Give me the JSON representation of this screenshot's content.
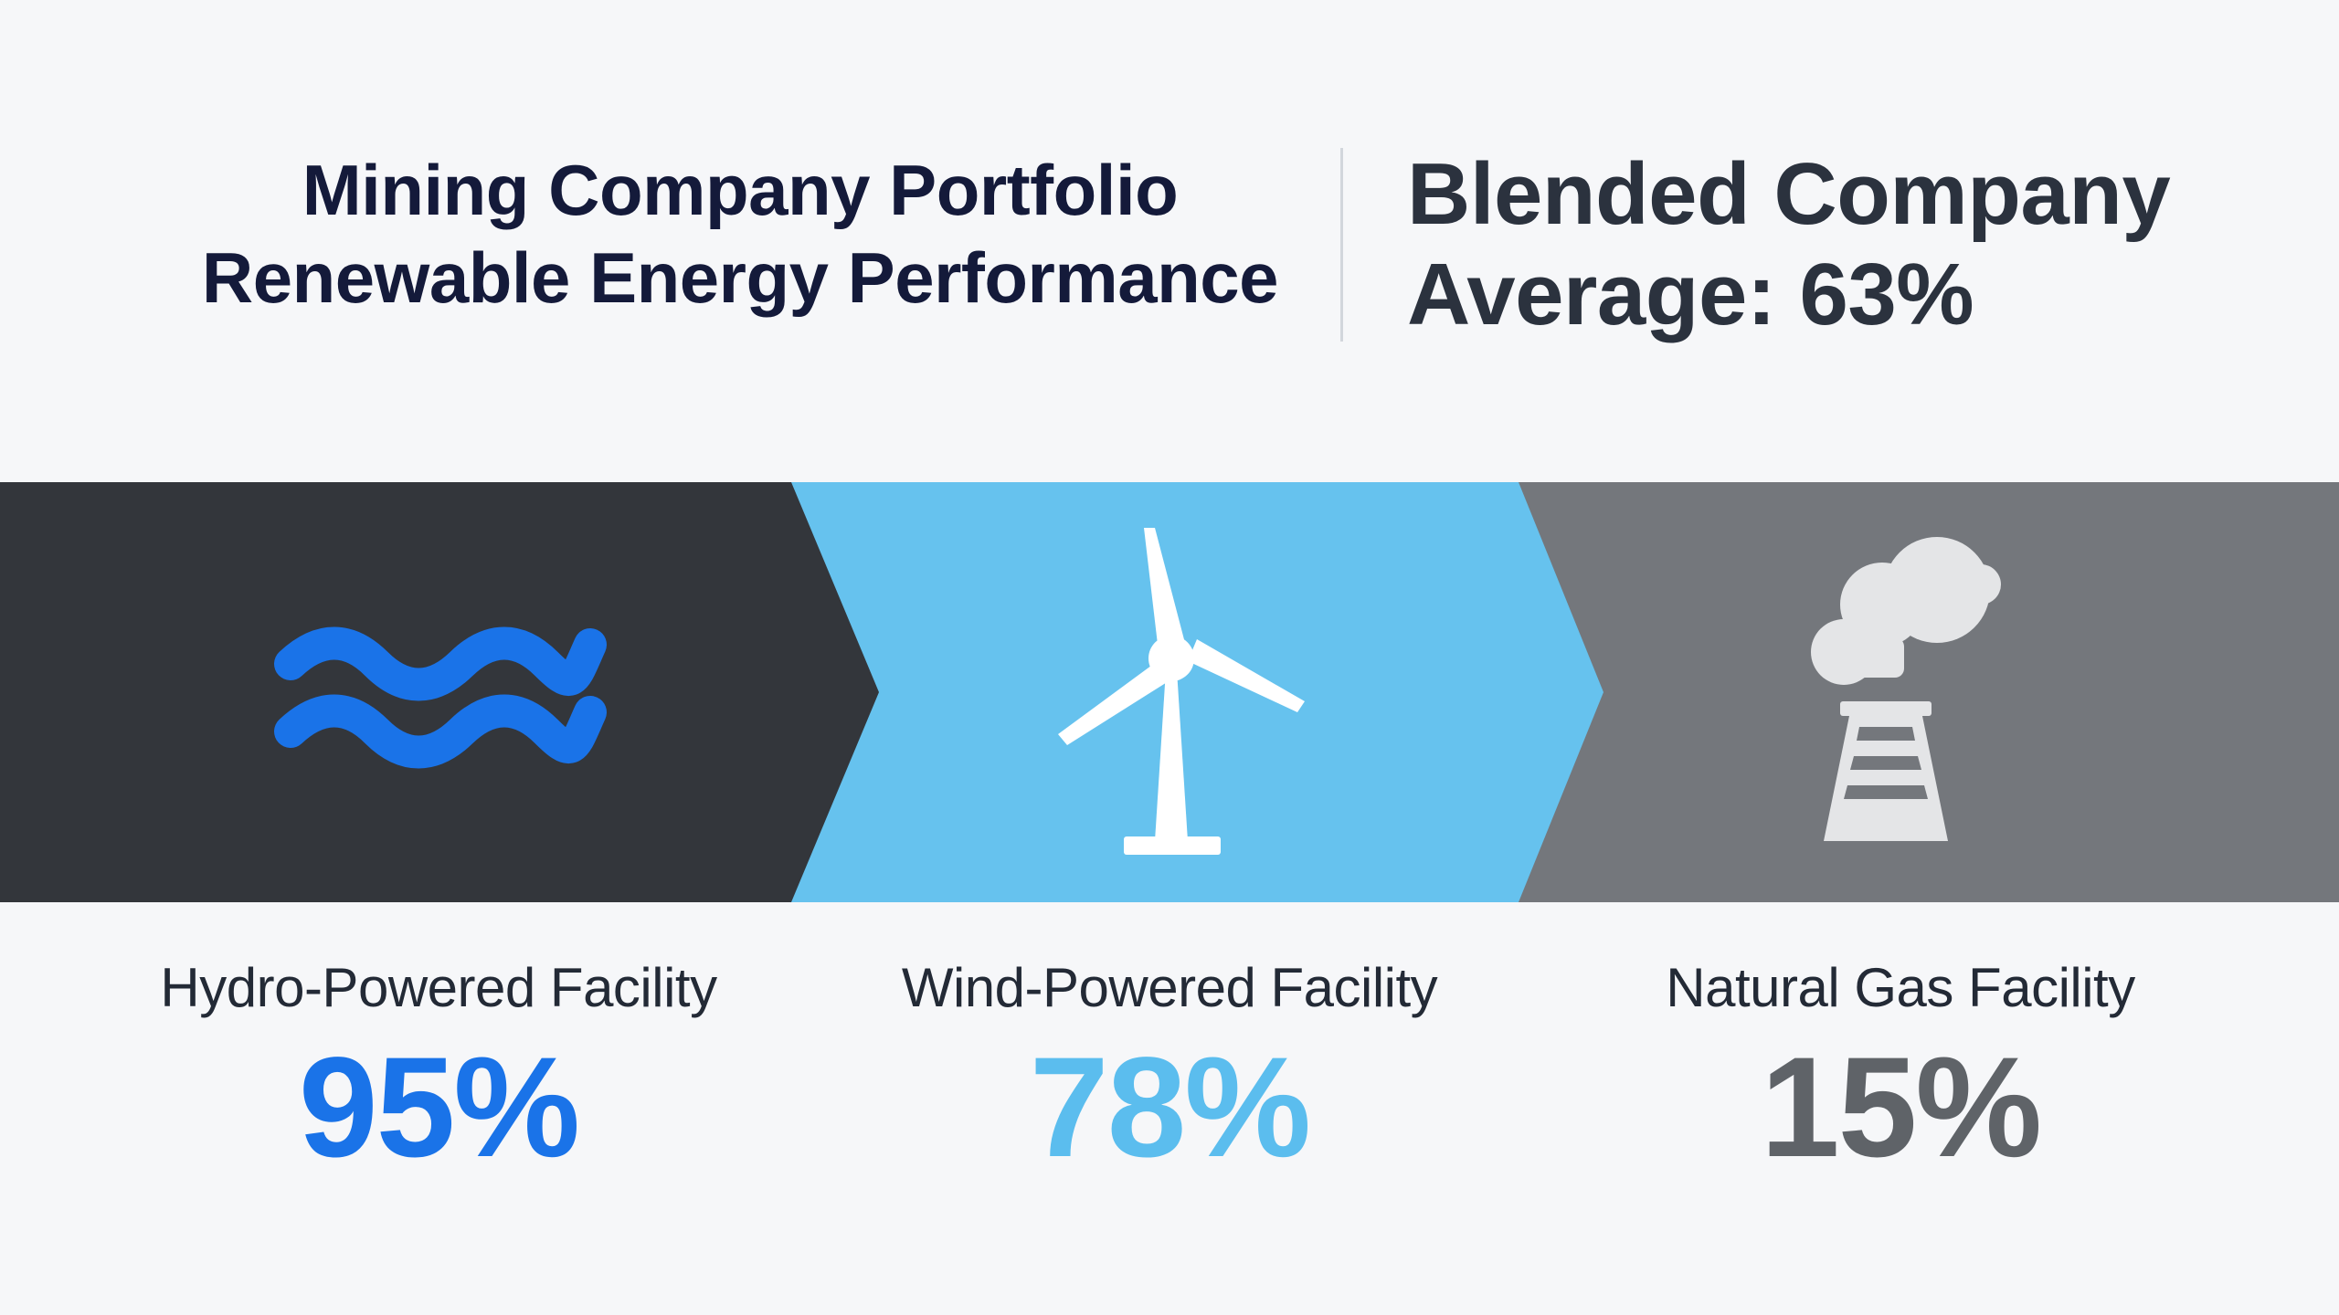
{
  "header": {
    "title_line1": "Mining Company Portfolio",
    "title_line2": "Renewable Energy Performance",
    "blended_line1": "Blended Company",
    "blended_line2": "Average: 63%"
  },
  "facilities": [
    {
      "label": "Hydro-Powered Facility",
      "value": "95%",
      "icon": "water-waves-icon",
      "color": "#1a73e8"
    },
    {
      "label": "Wind-Powered Facility",
      "value": "78%",
      "icon": "wind-turbine-icon",
      "color": "#5bbdee"
    },
    {
      "label": "Natural Gas Facility",
      "value": "15%",
      "icon": "gas-plant-icon",
      "color": "#5f6368"
    }
  ],
  "colors": {
    "band_dark": "#33363b",
    "band_blue": "#66c2ee",
    "band_gray": "#74777c",
    "accent_hydro": "#1a73e8",
    "accent_wind": "#5bbdee",
    "accent_gas": "#5f6368"
  }
}
